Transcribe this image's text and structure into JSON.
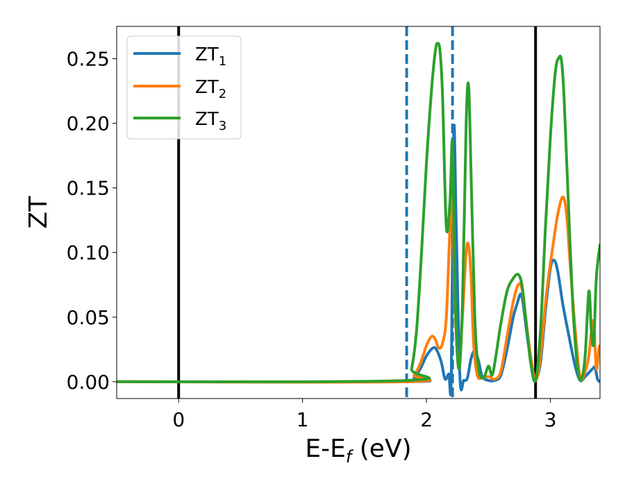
{
  "chart_data": {
    "type": "line",
    "xlabel": "E-E",
    "xlabel_sub": "f",
    "xlabel_unit": " (eV)",
    "ylabel": "ZT",
    "xlim": [
      -0.5,
      3.4
    ],
    "ylim": [
      -0.013,
      0.275
    ],
    "xticks": [
      0,
      1,
      2,
      3
    ],
    "xtick_labels": [
      "0",
      "1",
      "2",
      "3"
    ],
    "yticks": [
      0.0,
      0.05,
      0.1,
      0.15,
      0.2,
      0.25
    ],
    "ytick_labels": [
      "0.00",
      "0.05",
      "0.10",
      "0.15",
      "0.20",
      "0.25"
    ],
    "grid": false,
    "legend_position": "upper-left",
    "vlines": [
      {
        "x": 0.0,
        "style": "solid",
        "color": "#000000"
      },
      {
        "x": 2.88,
        "style": "solid",
        "color": "#000000"
      },
      {
        "x": 1.84,
        "style": "dashed",
        "color": "#1f77b4"
      },
      {
        "x": 2.21,
        "style": "dashed",
        "color": "#1f77b4"
      }
    ],
    "series": [
      {
        "name": "ZT",
        "name_sub": "1",
        "color": "#1f77b4",
        "x": [
          -0.5,
          1.84,
          1.9,
          1.95,
          2.0,
          2.05,
          2.08,
          2.12,
          2.15,
          2.18,
          2.2,
          2.22,
          2.24,
          2.27,
          2.3,
          2.33,
          2.36,
          2.39,
          2.42,
          2.45,
          2.5,
          2.55,
          2.6,
          2.65,
          2.7,
          2.73,
          2.76,
          2.78,
          2.82,
          2.86,
          2.88,
          2.92,
          2.96,
          3.0,
          3.03,
          3.06,
          3.1,
          3.15,
          3.2,
          3.24,
          3.28,
          3.3,
          3.32,
          3.34,
          3.36,
          3.38,
          3.4
        ],
        "y": [
          0.0,
          0.0,
          0.003,
          0.01,
          0.02,
          0.026,
          0.025,
          0.015,
          0.002,
          0.006,
          0.003,
          0.195,
          0.12,
          0.003,
          0.001,
          0.003,
          0.018,
          0.024,
          0.016,
          0.004,
          0.001,
          0.001,
          0.005,
          0.025,
          0.05,
          0.06,
          0.068,
          0.06,
          0.03,
          0.008,
          0.001,
          0.015,
          0.055,
          0.088,
          0.094,
          0.085,
          0.06,
          0.035,
          0.012,
          0.001,
          0.004,
          0.006,
          0.008,
          0.01,
          0.011,
          0.002,
          0.0
        ]
      },
      {
        "name": "ZT",
        "name_sub": "2",
        "color": "#ff7f0e",
        "x": [
          -0.5,
          1.84,
          1.9,
          1.95,
          2.0,
          2.04,
          2.07,
          2.1,
          2.13,
          2.16,
          2.19,
          2.21,
          2.23,
          2.26,
          2.29,
          2.32,
          2.34,
          2.36,
          2.38,
          2.41,
          2.45,
          2.5,
          2.55,
          2.6,
          2.65,
          2.7,
          2.74,
          2.77,
          2.8,
          2.84,
          2.88,
          2.92,
          2.97,
          3.02,
          3.06,
          3.1,
          3.13,
          3.16,
          3.2,
          3.24,
          3.28,
          3.31,
          3.33,
          3.35,
          3.37,
          3.39,
          3.4
        ],
        "y": [
          0.0,
          0.0,
          0.005,
          0.014,
          0.028,
          0.035,
          0.033,
          0.026,
          0.03,
          0.05,
          0.12,
          0.14,
          0.06,
          0.01,
          0.05,
          0.1,
          0.105,
          0.08,
          0.03,
          0.005,
          0.003,
          0.004,
          0.002,
          0.008,
          0.035,
          0.062,
          0.075,
          0.072,
          0.05,
          0.02,
          0.001,
          0.02,
          0.07,
          0.105,
          0.13,
          0.143,
          0.13,
          0.09,
          0.04,
          0.003,
          0.008,
          0.02,
          0.038,
          0.046,
          0.01,
          0.025,
          0.028
        ]
      },
      {
        "name": "ZT",
        "name_sub": "3",
        "color": "#2ca02c",
        "x": [
          -0.5,
          1.84,
          1.88,
          1.92,
          1.96,
          2.0,
          2.04,
          2.07,
          2.09,
          2.11,
          2.13,
          2.16,
          2.19,
          2.21,
          2.23,
          2.26,
          2.29,
          2.32,
          2.34,
          2.36,
          2.39,
          2.42,
          2.46,
          2.5,
          2.53,
          2.56,
          2.6,
          2.65,
          2.7,
          2.74,
          2.77,
          2.8,
          2.84,
          2.88,
          2.92,
          2.96,
          3.0,
          3.04,
          3.07,
          3.09,
          3.11,
          3.14,
          3.18,
          3.22,
          3.25,
          3.28,
          3.31,
          3.33,
          3.35,
          3.37,
          3.4
        ],
        "y": [
          0.0,
          0.001,
          0.01,
          0.04,
          0.1,
          0.17,
          0.225,
          0.255,
          0.262,
          0.255,
          0.22,
          0.12,
          0.14,
          0.185,
          0.07,
          0.01,
          0.06,
          0.2,
          0.229,
          0.16,
          0.05,
          0.01,
          0.003,
          0.012,
          0.005,
          0.02,
          0.045,
          0.07,
          0.08,
          0.083,
          0.075,
          0.05,
          0.015,
          0.001,
          0.04,
          0.12,
          0.19,
          0.24,
          0.251,
          0.248,
          0.22,
          0.15,
          0.06,
          0.01,
          0.002,
          0.02,
          0.07,
          0.04,
          0.03,
          0.08,
          0.106
        ]
      }
    ]
  }
}
